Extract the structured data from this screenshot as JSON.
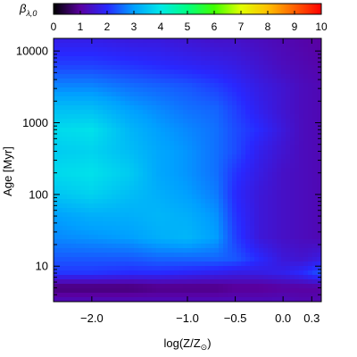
{
  "chart_data": {
    "type": "heatmap",
    "colorbar": {
      "label": "β",
      "label_sub": "λ,0",
      "ticks": [
        "0",
        "1",
        "2",
        "3",
        "4",
        "5",
        "6",
        "7",
        "8",
        "9",
        "10"
      ],
      "range": [
        0,
        10
      ],
      "colormap": [
        "#000000",
        "#5a00a0",
        "#2828ff",
        "#00a0ff",
        "#00e8e8",
        "#00ff80",
        "#40ff00",
        "#e0ff00",
        "#ffc000",
        "#ff6000",
        "#ff0000"
      ]
    },
    "xlabel": "log(Z/Z",
    "xlabel_symbol": "⊙",
    "xlabel_close": ")",
    "ylabel": "Age [Myr]",
    "x_axis": {
      "range": [
        -2.4,
        0.4
      ],
      "ticks": [
        {
          "v": -2.0,
          "label": "−2.0"
        },
        {
          "v": -1.0,
          "label": "−1.0"
        },
        {
          "v": -0.5,
          "label": "−0.5"
        },
        {
          "v": 0.0,
          "label": "0.0"
        },
        {
          "v": 0.3,
          "label": "0.3"
        }
      ]
    },
    "y_axis": {
      "scale": "log",
      "range": [
        3.2,
        15000
      ],
      "ticks": [
        {
          "v": 10,
          "label": "10"
        },
        {
          "v": 100,
          "label": "100"
        },
        {
          "v": 1000,
          "label": "1000"
        },
        {
          "v": 10000,
          "label": "10000"
        }
      ]
    },
    "field_description": "beta_lambda,0 value as a function of metallicity (x) and log age (y), estimated from colours",
    "grid": {
      "x": [
        -2.4,
        -2.0,
        -1.6,
        -1.3,
        -1.0,
        -0.7,
        -0.5,
        -0.25,
        0.0,
        0.2,
        0.4
      ],
      "y_log": [
        0.5,
        0.7,
        0.9,
        1.1,
        1.4,
        1.7,
        2.0,
        2.3,
        2.6,
        2.9,
        3.2,
        3.5,
        3.8,
        4.2
      ],
      "values": [
        [
          1.3,
          1.3,
          1.3,
          1.3,
          1.3,
          1.3,
          1.3,
          1.3,
          1.3,
          1.2,
          1.2
        ],
        [
          0.7,
          0.7,
          0.7,
          0.8,
          0.8,
          0.8,
          0.9,
          0.9,
          1.0,
          1.0,
          1.0
        ],
        [
          2.1,
          2.1,
          2.0,
          2.0,
          1.9,
          1.8,
          1.7,
          1.7,
          1.8,
          2.0,
          2.4
        ],
        [
          2.4,
          2.4,
          2.4,
          2.5,
          2.5,
          2.5,
          2.4,
          2.0,
          1.6,
          1.5,
          1.7
        ],
        [
          2.8,
          2.9,
          3.0,
          3.2,
          3.3,
          3.0,
          2.2,
          1.6,
          1.4,
          1.3,
          1.2
        ],
        [
          3.0,
          3.2,
          3.2,
          3.3,
          3.2,
          2.9,
          2.1,
          1.6,
          1.4,
          1.3,
          1.2
        ],
        [
          3.5,
          3.7,
          3.4,
          3.2,
          3.0,
          2.7,
          2.0,
          1.6,
          1.4,
          1.3,
          1.2
        ],
        [
          3.8,
          3.9,
          3.6,
          3.1,
          2.9,
          2.6,
          2.1,
          1.7,
          1.4,
          1.3,
          1.2
        ],
        [
          3.6,
          3.7,
          3.4,
          3.1,
          2.9,
          2.6,
          2.3,
          1.8,
          1.5,
          1.3,
          1.2
        ],
        [
          3.8,
          3.9,
          3.3,
          3.0,
          2.8,
          2.6,
          2.3,
          2.0,
          1.6,
          1.3,
          1.2
        ],
        [
          3.4,
          3.4,
          3.0,
          2.8,
          2.6,
          2.5,
          2.2,
          1.8,
          1.5,
          1.3,
          1.2
        ],
        [
          2.8,
          2.8,
          2.6,
          2.5,
          2.4,
          2.2,
          2.0,
          1.7,
          1.5,
          1.3,
          1.2
        ],
        [
          2.2,
          2.2,
          2.1,
          2.0,
          1.9,
          1.8,
          1.7,
          1.5,
          1.3,
          1.2,
          1.1
        ],
        [
          1.7,
          1.7,
          1.6,
          1.6,
          1.5,
          1.4,
          1.4,
          1.3,
          1.2,
          1.1,
          1.0
        ]
      ]
    }
  }
}
